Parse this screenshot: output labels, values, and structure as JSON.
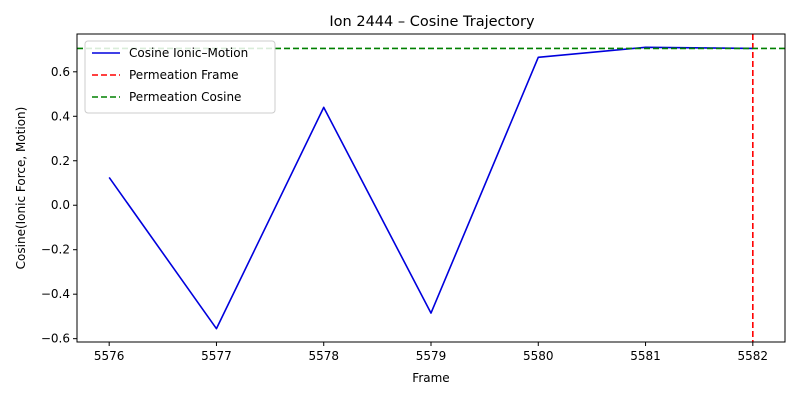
{
  "chart_data": {
    "type": "line",
    "title": "Ion 2444 – Cosine Trajectory",
    "xlabel": "Frame",
    "ylabel": "Cosine(Ionic Force, Motion)",
    "xlim": [
      5575.7,
      5582.3
    ],
    "ylim": [
      -0.615,
      0.77
    ],
    "xticks": [
      5576,
      5577,
      5578,
      5579,
      5580,
      5581,
      5582
    ],
    "yticks": [
      -0.6,
      -0.4,
      -0.2,
      0.0,
      0.2,
      0.4,
      0.6
    ],
    "ytick_labels": [
      "−0.6",
      "−0.4",
      "−0.2",
      "0.0",
      "0.2",
      "0.4",
      "0.6"
    ],
    "grid": false,
    "legend_position": "top-left",
    "series": [
      {
        "name": "Cosine Ionic–Motion",
        "color": "#0000dd",
        "style": "solid",
        "x": [
          5576,
          5577,
          5578,
          5579,
          5580,
          5581,
          5582
        ],
        "y": [
          0.125,
          -0.555,
          0.44,
          -0.485,
          0.665,
          0.71,
          0.705
        ]
      }
    ],
    "reference_lines": [
      {
        "name": "Permeation Frame",
        "orientation": "vertical",
        "value": 5582,
        "color": "#ff0000",
        "style": "dashed"
      },
      {
        "name": "Permeation Cosine",
        "orientation": "horizontal",
        "value": 0.705,
        "color": "#008000",
        "style": "dashed"
      }
    ]
  }
}
